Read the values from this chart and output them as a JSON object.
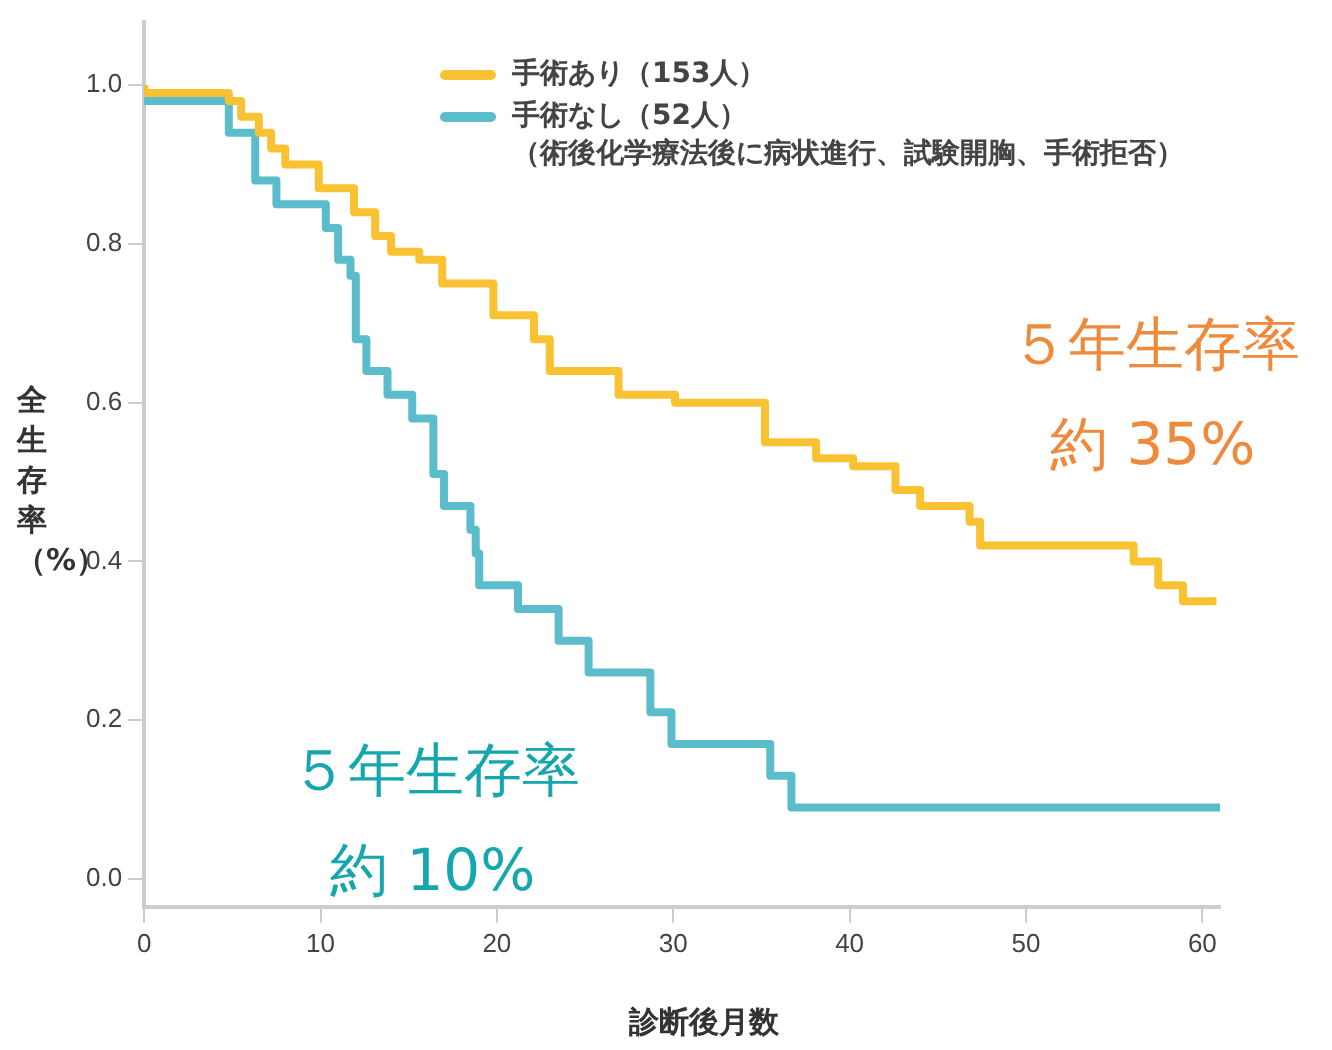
{
  "chart_data": {
    "type": "step",
    "xlabel": "診断後月数",
    "ylabel": "全生存率（%）",
    "xlim": [
      0,
      61
    ],
    "xticks": [
      0,
      10,
      20,
      30,
      40,
      50,
      60
    ],
    "ylim": [
      -0.035,
      1.08
    ],
    "yticks": [
      {
        "value": 0,
        "label": "0.0"
      },
      0.2,
      0.4,
      0.6,
      0.8,
      {
        "value": 1,
        "label": "1.0"
      }
    ],
    "grid": false,
    "legend": "top right",
    "marker": "none",
    "line_style": "solid",
    "annotations": [
      "５年生存率",
      "約 35%",
      "５年生存率",
      "約 10%"
    ],
    "series": [
      {
        "name": "手術あり（153人）",
        "color": "#f9c233",
        "x": [
          0,
          4.8,
          5.5,
          6.5,
          7.2,
          8.0,
          9.9,
          11.9,
          13.1,
          14.0,
          15.6,
          16.9,
          19.8,
          22.1,
          23.0,
          26.9,
          30.1,
          35.2,
          38.1,
          40.2,
          42.6,
          44.0,
          46.8,
          47.4,
          56.1,
          57.5,
          58.9,
          59.9,
          60.8
        ],
        "values": [
          1.0,
          0.99,
          0.98,
          0.96,
          0.94,
          0.92,
          0.9,
          0.87,
          0.84,
          0.81,
          0.79,
          0.78,
          0.75,
          0.71,
          0.68,
          0.64,
          0.61,
          0.6,
          0.55,
          0.53,
          0.52,
          0.49,
          0.47,
          0.45,
          0.42,
          0.4,
          0.37,
          0.35,
          0.35
        ]
      },
      {
        "name": "手術なし（52人）（術後化学療法後に病状進行、試験開胸、手術拒否）",
        "color": "#5bbccc",
        "x": [
          0,
          4.8,
          6.3,
          7.5,
          10.3,
          11.0,
          11.7,
          12.0,
          12.6,
          13.8,
          15.2,
          16.4,
          17.0,
          18.5,
          18.8,
          19.0,
          21.2,
          23.5,
          25.2,
          28.7,
          29.9,
          35.5,
          36.7,
          45.8,
          61.0
        ],
        "values": [
          1.0,
          0.98,
          0.94,
          0.88,
          0.85,
          0.82,
          0.78,
          0.76,
          0.68,
          0.64,
          0.61,
          0.58,
          0.51,
          0.47,
          0.44,
          0.41,
          0.37,
          0.34,
          0.3,
          0.26,
          0.21,
          0.17,
          0.13,
          0.09,
          0.09
        ]
      }
    ]
  }
}
